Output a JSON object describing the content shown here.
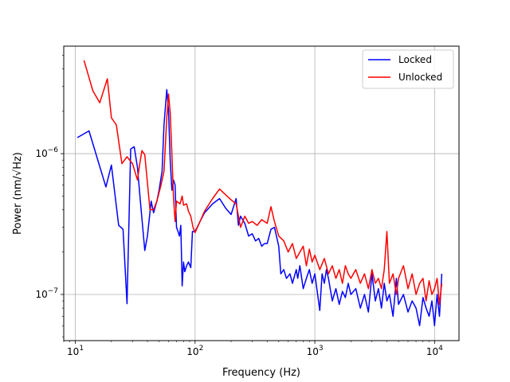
{
  "chart_data": {
    "type": "line",
    "title": "",
    "xlabel": "Frequency (Hz)",
    "ylabel": "Power (nm/√Hz)",
    "xscale": "log",
    "yscale": "log",
    "xlim": [
      8,
      16000
    ],
    "ylim": [
      4.7e-08,
      5.8e-06
    ],
    "grid": true,
    "legend_position": "top-right",
    "x_ticks": [
      {
        "value": 10,
        "base": "10",
        "exp": "1"
      },
      {
        "value": 100,
        "base": "10",
        "exp": "2"
      },
      {
        "value": 1000,
        "base": "10",
        "exp": "3"
      },
      {
        "value": 10000,
        "base": "10",
        "exp": "4"
      }
    ],
    "y_ticks": [
      {
        "value": 1e-07,
        "base": "10",
        "exp": "−7"
      },
      {
        "value": 1e-06,
        "base": "10",
        "exp": "−6"
      }
    ],
    "series": [
      {
        "name": "Locked",
        "color": "#0000ff",
        "x": [
          10.4,
          13,
          18,
          20,
          23,
          25,
          27,
          29,
          31,
          33,
          35,
          38,
          40,
          43,
          45,
          48,
          50,
          53,
          55,
          58,
          60,
          62,
          64,
          66,
          68,
          70,
          72,
          74,
          76,
          78,
          80,
          82,
          85,
          88,
          92,
          95,
          100,
          110,
          120,
          140,
          160,
          180,
          200,
          220,
          230,
          240,
          260,
          280,
          300,
          320,
          340,
          360,
          380,
          400,
          430,
          460,
          500,
          520,
          550,
          580,
          620,
          650,
          700,
          720,
          750,
          800,
          850,
          900,
          950,
          1000,
          1100,
          1150,
          1200,
          1250,
          1300,
          1400,
          1500,
          1600,
          1700,
          1800,
          1900,
          2000,
          2200,
          2400,
          2600,
          2800,
          3000,
          3200,
          3400,
          3600,
          3800,
          4000,
          4200,
          4500,
          4800,
          5000,
          5500,
          6000,
          6500,
          7000,
          7500,
          8000,
          8500,
          9000,
          9500,
          10000,
          10500,
          11000,
          11500
        ],
        "y": [
          1.3e-06,
          1.45e-06,
          5.8e-07,
          8.3e-07,
          3.1e-07,
          2.9e-07,
          8.6e-08,
          1.08e-06,
          1.12e-06,
          8e-07,
          4.5e-07,
          2.05e-07,
          2.6e-07,
          4.6e-07,
          3.8e-07,
          4.6e-07,
          5.5e-07,
          7.5e-07,
          1.6e-06,
          2.85e-06,
          2e-06,
          9e-07,
          5.5e-07,
          6.5e-07,
          6e-07,
          3e-07,
          2.8e-07,
          2.6e-07,
          3.1e-07,
          1.15e-07,
          1.7e-07,
          1.45e-07,
          1.6e-07,
          1.7e-07,
          1.55e-07,
          2.8e-07,
          2.8e-07,
          3.3e-07,
          3.8e-07,
          4.4e-07,
          4.8e-07,
          4.1e-07,
          3.7e-07,
          4.8e-07,
          3.1e-07,
          3.6e-07,
          3.2e-07,
          2.6e-07,
          2.7e-07,
          2.4e-07,
          2.5e-07,
          2.2e-07,
          2.3e-07,
          2.3e-07,
          2.9e-07,
          3e-07,
          2.2e-07,
          1.4e-07,
          1.5e-07,
          1.3e-07,
          1.4e-07,
          1.2e-07,
          1.5e-07,
          1.3e-07,
          1.6e-07,
          1.1e-07,
          1.3e-07,
          1.5e-07,
          1.2e-07,
          1.4e-07,
          7.7e-08,
          1.4e-07,
          1.2e-07,
          1.5e-07,
          1.3e-07,
          9e-08,
          1.1e-07,
          8.5e-08,
          1.05e-07,
          9.5e-08,
          1.2e-07,
          1e-07,
          1.1e-07,
          8e-08,
          1e-07,
          7.5e-08,
          1.4e-07,
          9e-08,
          1.1e-07,
          8e-08,
          1.2e-07,
          9e-08,
          1e-07,
          7e-08,
          1.3e-07,
          8.5e-08,
          1e-07,
          7.5e-08,
          9e-08,
          8e-08,
          6e-08,
          9.5e-08,
          8e-08,
          7e-08,
          9e-08,
          6e-08,
          1e-07,
          7e-08,
          1.4e-07
        ]
      },
      {
        "name": "Unlocked",
        "color": "#ff0000",
        "x": [
          11.8,
          14,
          16,
          18.5,
          20,
          22,
          24.5,
          27,
          30,
          33,
          34.5,
          36,
          38,
          42,
          45,
          48,
          52,
          55,
          58,
          60,
          62,
          64,
          66,
          68,
          70,
          75,
          78,
          80,
          85,
          88,
          92,
          96,
          100,
          110,
          120,
          140,
          160,
          180,
          200,
          220,
          240,
          260,
          280,
          300,
          330,
          360,
          400,
          430,
          460,
          500,
          550,
          600,
          650,
          700,
          750,
          800,
          850,
          900,
          950,
          1000,
          1100,
          1200,
          1300,
          1400,
          1500,
          1600,
          1700,
          1800,
          1900,
          2000,
          2200,
          2400,
          2600,
          2800,
          3000,
          3200,
          3400,
          3600,
          3800,
          4000,
          4200,
          4500,
          4800,
          5000,
          5500,
          6000,
          6500,
          7000,
          7500,
          8000,
          8500,
          9000,
          9500,
          10000,
          10500,
          11000,
          11500
        ],
        "y": [
          4.6e-06,
          2.8e-06,
          2.3e-06,
          3.4e-06,
          1.8e-06,
          1.6e-06,
          8.5e-07,
          9.5e-07,
          8.5e-07,
          6.5e-07,
          8.5e-07,
          1.05e-06,
          9.8e-07,
          4e-07,
          4e-07,
          4.6e-07,
          6e-07,
          7.5e-07,
          1.8e-06,
          2.65e-06,
          1.95e-06,
          1e-06,
          4.9e-07,
          3.3e-07,
          4.6e-07,
          4.4e-07,
          5e-07,
          4.3e-07,
          4.4e-07,
          3.9e-07,
          3.6e-07,
          3e-07,
          2.75e-07,
          3.3e-07,
          3.9e-07,
          4.8e-07,
          5.6e-07,
          5.1e-07,
          4.7e-07,
          4.4e-07,
          3e-07,
          3.6e-07,
          3.2e-07,
          3.3e-07,
          3.1e-07,
          3.4e-07,
          3.2e-07,
          4.2e-07,
          3.3e-07,
          2.6e-07,
          2.4e-07,
          2e-07,
          2.3e-07,
          1.8e-07,
          2e-07,
          2.2e-07,
          1.6e-07,
          2.1e-07,
          1.7e-07,
          1.9e-07,
          1.5e-07,
          1.8e-07,
          1.4e-07,
          1.6e-07,
          1.3e-07,
          1.5e-07,
          1.2e-07,
          1.6e-07,
          1.4e-07,
          1.3e-07,
          1.5e-07,
          1.2e-07,
          1.4e-07,
          1.1e-07,
          1.5e-07,
          1.2e-07,
          1.3e-07,
          1.1e-07,
          1.5e-07,
          2.8e-07,
          1.2e-07,
          1.4e-07,
          1e-07,
          1.3e-07,
          1.6e-07,
          1.1e-07,
          1.4e-07,
          1e-07,
          1.2e-07,
          1.3e-07,
          9e-08,
          1.25e-07,
          1e-07,
          1.1e-07,
          1.3e-07,
          8.5e-08,
          1.2e-07
        ]
      }
    ]
  }
}
